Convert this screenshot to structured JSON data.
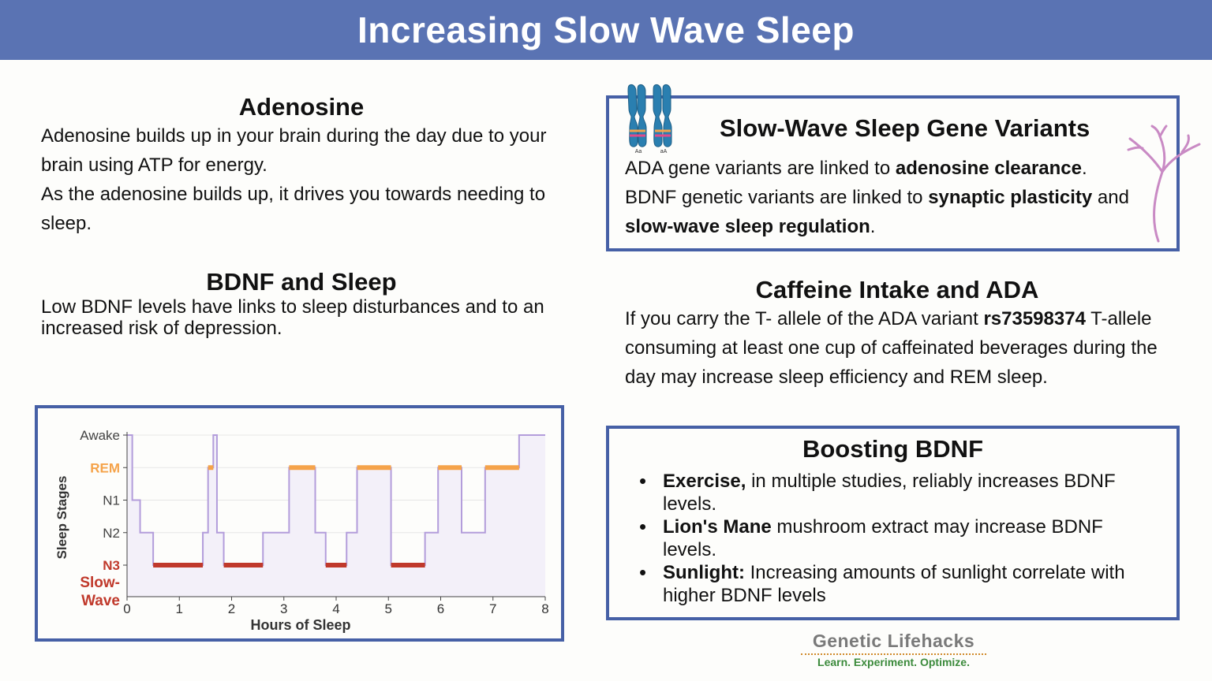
{
  "banner": {
    "title": "Increasing Slow Wave Sleep"
  },
  "adenosine": {
    "title": "Adenosine",
    "para1": "Adenosine builds up in your brain during the day due to your brain using ATP for energy.",
    "para2": "As the adenosine builds up, it drives you towards needing to sleep."
  },
  "bdnf_sleep": {
    "title": "BDNF and Sleep",
    "text": "Low BDNF levels have links to sleep disturbances and to an increased risk of depression."
  },
  "gene_variants": {
    "title": "Slow-Wave Sleep Gene Variants",
    "line1_pre": "ADA gene variants are linked to ",
    "line1_bold": "adenosine clearance",
    "line1_post": ".",
    "line2_pre": "BDNF genetic variants are linked to ",
    "line2_bold1": "synaptic plasticity",
    "line2_mid": " and ",
    "line2_bold2": "slow-wave sleep regulation",
    "line2_post": ".",
    "chromosome_labels": [
      "Aa",
      "aA"
    ]
  },
  "caffeine": {
    "title": "Caffeine Intake and ADA",
    "text_pre": "If you carry the T- allele of the ADA variant ",
    "text_bold": "rs73598374",
    "text_post": " T-allele consuming at least one cup of caffeinated beverages during the day may increase sleep efficiency and REM sleep."
  },
  "boosting": {
    "title": "Boosting BDNF",
    "items": [
      {
        "bold": "Exercise,",
        "text": " in multiple studies, reliably increases BDNF levels."
      },
      {
        "bold": "Lion's Mane",
        "text": " mushroom extract may increase BDNF levels."
      },
      {
        "bold": "Sunlight:",
        "text": " Increasing amounts of sunlight correlate with higher BDNF levels"
      }
    ]
  },
  "footer": {
    "brand": "Genetic Lifehacks",
    "tagline": "Learn. Experiment. Optimize."
  },
  "icons": {
    "chromosome": "chromosome-icon",
    "neuron": "neuron-icon"
  },
  "colors": {
    "banner": "#5a73b3",
    "box_border": "#4660a6",
    "rem": "#f5a34a",
    "n3": "#c0392b",
    "hypnogram_line": "#b39ddb",
    "hypnogram_fill": "#f3f0f9"
  },
  "chart_data": {
    "type": "line",
    "xlabel": "Hours of Sleep",
    "ylabel": "Sleep Stages",
    "xlim": [
      0,
      8
    ],
    "xticks": [
      "0",
      "1",
      "2",
      "3",
      "4",
      "5",
      "6",
      "7",
      "8"
    ],
    "stages": [
      {
        "key": "awake",
        "label": "Awake",
        "level": 4,
        "color": "#444444"
      },
      {
        "key": "rem",
        "label": "REM",
        "level": 3,
        "color": "#f5a34a"
      },
      {
        "key": "n1",
        "label": "N1",
        "level": 2,
        "color": "#444444"
      },
      {
        "key": "n2",
        "label": "N2",
        "level": 1,
        "color": "#444444"
      },
      {
        "key": "n3",
        "label": "N3",
        "level": 0,
        "color": "#c0392b"
      }
    ],
    "n3_extra_label": [
      "Slow-",
      "Wave"
    ],
    "steps": [
      {
        "start": 0.0,
        "end": 0.1,
        "level": 4
      },
      {
        "start": 0.1,
        "end": 0.25,
        "level": 2
      },
      {
        "start": 0.25,
        "end": 0.5,
        "level": 1
      },
      {
        "start": 0.5,
        "end": 1.45,
        "level": 0
      },
      {
        "start": 1.45,
        "end": 1.55,
        "level": 1
      },
      {
        "start": 1.55,
        "end": 1.65,
        "level": 3
      },
      {
        "start": 1.65,
        "end": 1.72,
        "level": 4
      },
      {
        "start": 1.72,
        "end": 1.85,
        "level": 1
      },
      {
        "start": 1.85,
        "end": 2.6,
        "level": 0
      },
      {
        "start": 2.6,
        "end": 3.1,
        "level": 1
      },
      {
        "start": 3.1,
        "end": 3.6,
        "level": 3
      },
      {
        "start": 3.6,
        "end": 3.8,
        "level": 1
      },
      {
        "start": 3.8,
        "end": 4.2,
        "level": 0
      },
      {
        "start": 4.2,
        "end": 4.4,
        "level": 1
      },
      {
        "start": 4.4,
        "end": 5.05,
        "level": 3
      },
      {
        "start": 5.05,
        "end": 5.7,
        "level": 0
      },
      {
        "start": 5.7,
        "end": 5.95,
        "level": 1
      },
      {
        "start": 5.95,
        "end": 6.4,
        "level": 3
      },
      {
        "start": 6.4,
        "end": 6.85,
        "level": 1
      },
      {
        "start": 6.85,
        "end": 7.5,
        "level": 3
      },
      {
        "start": 7.5,
        "end": 8.0,
        "level": 4
      }
    ]
  }
}
